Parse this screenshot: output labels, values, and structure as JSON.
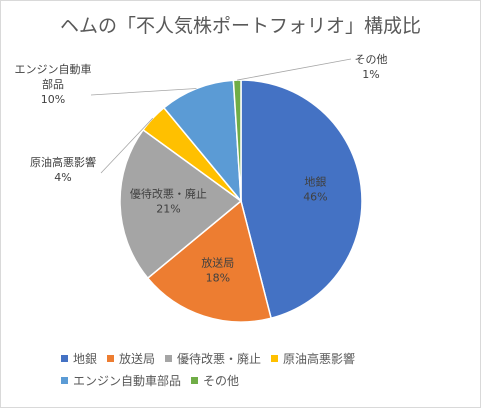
{
  "chart_data": {
    "type": "pie",
    "title": "ヘムの「不人気株ポートフォリオ」構成比",
    "categories": [
      "地銀",
      "放送局",
      "優待改悪・廃止",
      "原油高悪影響",
      "エンジン自動車部品",
      "その他"
    ],
    "values": [
      46,
      18,
      21,
      4,
      10,
      1
    ],
    "value_labels": [
      "46%",
      "18%",
      "21%",
      "4%",
      "10%",
      "1%"
    ],
    "colors": [
      "#4472c4",
      "#ed7d31",
      "#a5a5a5",
      "#ffc000",
      "#5b9bd5",
      "#70ad47"
    ],
    "legend_position": "bottom",
    "start_angle_deg": 0,
    "direction": "clockwise"
  }
}
